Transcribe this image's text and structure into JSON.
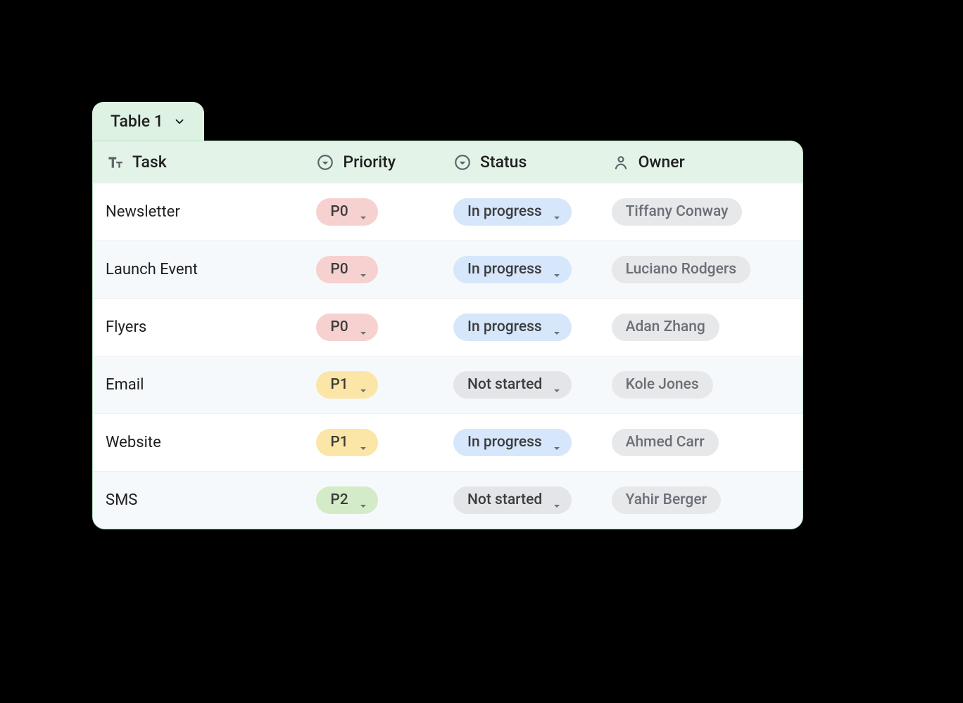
{
  "colors": {
    "tab_bg": "#def2e3",
    "head_bg": "#e4f3e8",
    "border_green": "#b6e2c1",
    "row_alt_bg": "#f6f9fc",
    "row_border": "#edf1f4",
    "text_dark": "#1f1f1f",
    "icon_color": "#5f6368",
    "pill_text": "#3c3c3c",
    "owner_text": "#6b6f76",
    "owner_bg": "#e6e8ea",
    "caret_color": "#6b6f76"
  },
  "priority_colors": {
    "P0": "#f6d1cf",
    "P1": "#fbe6a7",
    "P2": "#d3ebc6"
  },
  "status_colors": {
    "In progress": "#d6e6fb",
    "Not started": "#e3e5e8"
  },
  "tab_label": "Table 1",
  "columns": [
    {
      "key": "task",
      "label": "Task",
      "icon": "text"
    },
    {
      "key": "priority",
      "label": "Priority",
      "icon": "select"
    },
    {
      "key": "status",
      "label": "Status",
      "icon": "select"
    },
    {
      "key": "owner",
      "label": "Owner",
      "icon": "person"
    }
  ],
  "rows": [
    {
      "task": "Newsletter",
      "priority": "P0",
      "status": "In progress",
      "owner": "Tiffany Conway"
    },
    {
      "task": "Launch Event",
      "priority": "P0",
      "status": "In progress",
      "owner": "Luciano Rodgers"
    },
    {
      "task": "Flyers",
      "priority": "P0",
      "status": "In progress",
      "owner": "Adan Zhang"
    },
    {
      "task": "Email",
      "priority": "P1",
      "status": "Not started",
      "owner": "Kole Jones"
    },
    {
      "task": "Website",
      "priority": "P1",
      "status": "In progress",
      "owner": "Ahmed Carr"
    },
    {
      "task": "SMS",
      "priority": "P2",
      "status": "Not started",
      "owner": "Yahir Berger"
    }
  ]
}
